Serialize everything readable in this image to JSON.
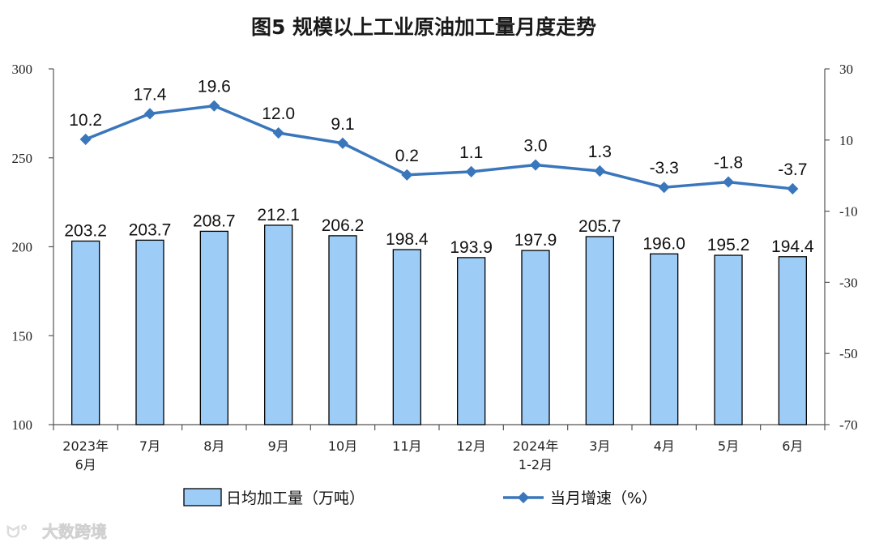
{
  "watermark": "大数跨境",
  "chart_data": {
    "type": "bar+line",
    "title": "图5  规模以上工业原油加工量月度走势",
    "categories": [
      [
        "2023年",
        "6月"
      ],
      [
        "7月"
      ],
      [
        "8月"
      ],
      [
        "9月"
      ],
      [
        "10月"
      ],
      [
        "11月"
      ],
      [
        "12月"
      ],
      [
        "2024年",
        "1-2月"
      ],
      [
        "3月"
      ],
      [
        "4月"
      ],
      [
        "5月"
      ],
      [
        "6月"
      ]
    ],
    "left_axis": {
      "ylim": [
        100,
        300
      ],
      "ticks": [
        100,
        150,
        200,
        250,
        300
      ]
    },
    "right_axis": {
      "ylim": [
        -70,
        30
      ],
      "ticks": [
        -70,
        -50,
        -30,
        -10,
        10,
        30
      ]
    },
    "series": [
      {
        "name": "日均加工量（万吨）",
        "type": "bar",
        "axis": "left",
        "color": "#9DCDF7",
        "values": [
          203.2,
          203.7,
          208.7,
          212.1,
          206.2,
          198.4,
          193.9,
          197.9,
          205.7,
          196.0,
          195.2,
          194.4
        ],
        "labels": [
          "203.2",
          "203.7",
          "208.7",
          "212.1",
          "206.2",
          "198.4",
          "193.9",
          "197.9",
          "205.7",
          "196.0",
          "195.2",
          "194.4"
        ]
      },
      {
        "name": "当月增速（%）",
        "type": "line",
        "axis": "right",
        "color": "#3A76BC",
        "values": [
          10.2,
          17.4,
          19.6,
          12.0,
          9.1,
          0.2,
          1.1,
          3.0,
          1.3,
          -3.3,
          -1.8,
          -3.7
        ],
        "labels": [
          "10.2",
          "17.4",
          "19.6",
          "12.0",
          "9.1",
          "0.2",
          "1.1",
          "3.0",
          "1.3",
          "-3.3",
          "-1.8",
          "-3.7"
        ]
      }
    ],
    "grid": false,
    "legend": "bottom"
  }
}
